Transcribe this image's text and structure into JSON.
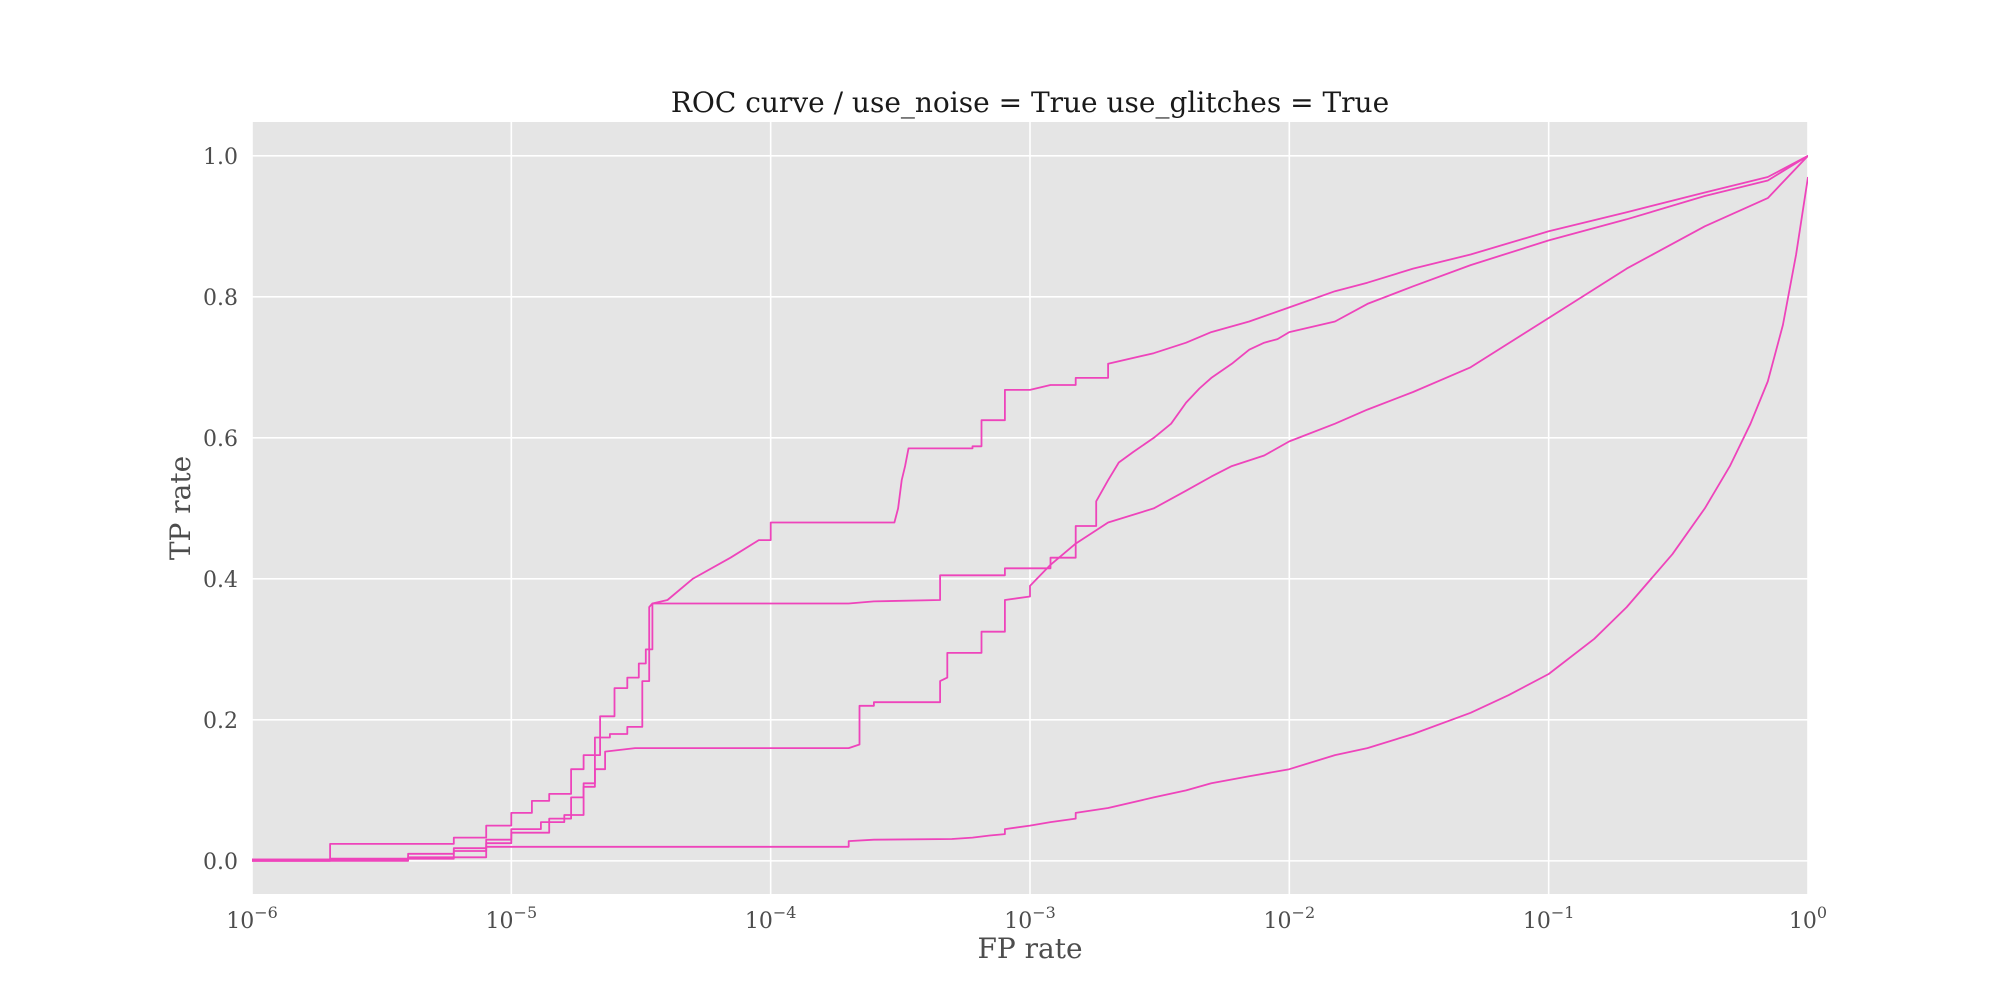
{
  "chart_data": {
    "type": "line",
    "title": "ROC curve / use_noise = True  use_glitches = True",
    "xlabel": "FP rate",
    "ylabel": "TP rate",
    "xscale": "log",
    "xlim": [
      1e-06,
      1
    ],
    "ylim": [
      -0.047,
      1.048
    ],
    "grid": true,
    "colors": {
      "background": "#e5e5e5",
      "grid": "#ffffff",
      "line": "#ee44bb"
    },
    "x_ticks": [
      {
        "value": 1e-06,
        "base": "10",
        "exp": "−6"
      },
      {
        "value": 1e-05,
        "base": "10",
        "exp": "−5"
      },
      {
        "value": 0.0001,
        "base": "10",
        "exp": "−4"
      },
      {
        "value": 0.001,
        "base": "10",
        "exp": "−3"
      },
      {
        "value": 0.01,
        "base": "10",
        "exp": "−2"
      },
      {
        "value": 0.1,
        "base": "10",
        "exp": "−1"
      },
      {
        "value": 1,
        "base": "10",
        "exp": "0"
      }
    ],
    "y_ticks": [
      {
        "value": 0.0,
        "label": "0.0"
      },
      {
        "value": 0.2,
        "label": "0.2"
      },
      {
        "value": 0.4,
        "label": "0.4"
      },
      {
        "value": 0.6,
        "label": "0.6"
      },
      {
        "value": 0.8,
        "label": "0.8"
      },
      {
        "value": 1.0,
        "label": "1.0"
      }
    ],
    "series": [
      {
        "x": [
          1e-06,
          2e-06,
          2e-06,
          6e-06,
          6e-06,
          8e-06,
          8e-06,
          1e-05,
          1e-05,
          1.2e-05,
          1.2e-05,
          1.4e-05,
          1.4e-05,
          1.7e-05,
          1.7e-05,
          1.9e-05,
          1.9e-05,
          2.2e-05,
          2.2e-05,
          2.5e-05,
          2.5e-05,
          2.8e-05,
          2.8e-05,
          3.1e-05,
          3.1e-05,
          3.3e-05,
          3.3e-05,
          3.5e-05,
          3.5e-05,
          4e-05,
          5e-05,
          7e-05,
          9e-05,
          0.0001,
          0.0001,
          0.0003,
          0.00031,
          0.00032,
          0.00033,
          0.00034,
          0.00035,
          0.0006,
          0.0006,
          0.00065,
          0.00065,
          0.0008,
          0.0008,
          0.001,
          0.0012,
          0.0015,
          0.0015,
          0.002,
          0.002,
          0.003,
          0.004,
          0.005,
          0.007,
          0.01,
          0.015,
          0.02,
          0.03,
          0.05,
          0.1,
          0.2,
          0.4,
          0.7,
          1.0
        ],
        "y": [
          0.002,
          0.002,
          0.024,
          0.024,
          0.033,
          0.033,
          0.05,
          0.05,
          0.068,
          0.068,
          0.085,
          0.085,
          0.095,
          0.095,
          0.13,
          0.13,
          0.15,
          0.15,
          0.205,
          0.205,
          0.245,
          0.245,
          0.26,
          0.26,
          0.28,
          0.28,
          0.3,
          0.3,
          0.365,
          0.37,
          0.4,
          0.43,
          0.455,
          0.455,
          0.48,
          0.48,
          0.5,
          0.54,
          0.56,
          0.585,
          0.585,
          0.585,
          0.588,
          0.588,
          0.625,
          0.625,
          0.668,
          0.668,
          0.675,
          0.675,
          0.685,
          0.685,
          0.705,
          0.72,
          0.735,
          0.75,
          0.765,
          0.785,
          0.808,
          0.82,
          0.84,
          0.86,
          0.893,
          0.92,
          0.948,
          0.97,
          1.0
        ]
      },
      {
        "x": [
          1e-06,
          4e-06,
          4e-06,
          6e-06,
          6e-06,
          8e-06,
          8e-06,
          1e-05,
          1e-05,
          1.3e-05,
          1.3e-05,
          1.6e-05,
          1.6e-05,
          1.9e-05,
          1.9e-05,
          2.1e-05,
          2.1e-05,
          2.4e-05,
          2.4e-05,
          2.8e-05,
          2.8e-05,
          3.2e-05,
          3.2e-05,
          3.4e-05,
          3.4e-05,
          3.5e-05,
          0.0002,
          0.00025,
          0.00025,
          0.00045,
          0.00045,
          0.0008,
          0.0008,
          0.0012,
          0.0012,
          0.0015,
          0.0015,
          0.0018,
          0.0018,
          0.002,
          0.0022,
          0.0025,
          0.003,
          0.0035,
          0.004,
          0.0045,
          0.005,
          0.006,
          0.007,
          0.008,
          0.009,
          0.01,
          0.015,
          0.02,
          0.03,
          0.05,
          0.1,
          0.2,
          0.4,
          0.7,
          1.0
        ],
        "y": [
          0.002,
          0.002,
          0.01,
          0.01,
          0.018,
          0.018,
          0.03,
          0.03,
          0.045,
          0.045,
          0.055,
          0.055,
          0.065,
          0.065,
          0.11,
          0.11,
          0.175,
          0.175,
          0.18,
          0.18,
          0.19,
          0.19,
          0.255,
          0.255,
          0.36,
          0.365,
          0.365,
          0.368,
          0.368,
          0.37,
          0.405,
          0.405,
          0.415,
          0.415,
          0.43,
          0.43,
          0.475,
          0.475,
          0.51,
          0.54,
          0.565,
          0.58,
          0.6,
          0.62,
          0.65,
          0.67,
          0.685,
          0.705,
          0.725,
          0.735,
          0.74,
          0.75,
          0.765,
          0.79,
          0.815,
          0.845,
          0.88,
          0.91,
          0.943,
          0.965,
          1.0
        ]
      },
      {
        "x": [
          1e-06,
          2e-06,
          2e-06,
          6e-06,
          6e-06,
          8e-06,
          8e-06,
          1e-05,
          1e-05,
          1.4e-05,
          1.4e-05,
          1.7e-05,
          1.7e-05,
          1.9e-05,
          1.9e-05,
          2.1e-05,
          2.1e-05,
          2.3e-05,
          2.3e-05,
          3e-05,
          0.0002,
          0.00022,
          0.00022,
          0.00025,
          0.00025,
          0.00045,
          0.00045,
          0.00048,
          0.00048,
          0.00065,
          0.00065,
          0.0008,
          0.0008,
          0.001,
          0.001,
          0.0012,
          0.0015,
          0.002,
          0.003,
          0.004,
          0.005,
          0.006,
          0.008,
          0.01,
          0.015,
          0.02,
          0.03,
          0.05,
          0.1,
          0.2,
          0.4,
          0.7,
          1.0
        ],
        "y": [
          0.0,
          0.0,
          0.003,
          0.003,
          0.014,
          0.014,
          0.025,
          0.025,
          0.04,
          0.04,
          0.06,
          0.06,
          0.09,
          0.09,
          0.105,
          0.105,
          0.13,
          0.13,
          0.155,
          0.16,
          0.16,
          0.165,
          0.22,
          0.22,
          0.225,
          0.225,
          0.255,
          0.26,
          0.295,
          0.295,
          0.325,
          0.325,
          0.37,
          0.375,
          0.39,
          0.42,
          0.45,
          0.48,
          0.5,
          0.525,
          0.545,
          0.56,
          0.575,
          0.595,
          0.62,
          0.64,
          0.665,
          0.7,
          0.77,
          0.84,
          0.9,
          0.94,
          1.0
        ]
      },
      {
        "x": [
          1e-06,
          4e-06,
          4e-06,
          8e-06,
          8e-06,
          0.0002,
          0.0002,
          0.00025,
          0.0005,
          0.0006,
          0.0007,
          0.0008,
          0.0008,
          0.001,
          0.0012,
          0.0015,
          0.0015,
          0.002,
          0.003,
          0.004,
          0.005,
          0.007,
          0.01,
          0.015,
          0.02,
          0.03,
          0.05,
          0.07,
          0.1,
          0.15,
          0.2,
          0.3,
          0.4,
          0.5,
          0.6,
          0.7,
          0.8,
          0.9,
          1.0
        ],
        "y": [
          0.0,
          0.0,
          0.005,
          0.005,
          0.02,
          0.02,
          0.028,
          0.03,
          0.031,
          0.033,
          0.036,
          0.038,
          0.045,
          0.05,
          0.055,
          0.06,
          0.068,
          0.075,
          0.09,
          0.1,
          0.11,
          0.12,
          0.13,
          0.15,
          0.16,
          0.18,
          0.21,
          0.235,
          0.265,
          0.315,
          0.36,
          0.435,
          0.5,
          0.56,
          0.62,
          0.68,
          0.76,
          0.86,
          0.97
        ]
      }
    ]
  }
}
